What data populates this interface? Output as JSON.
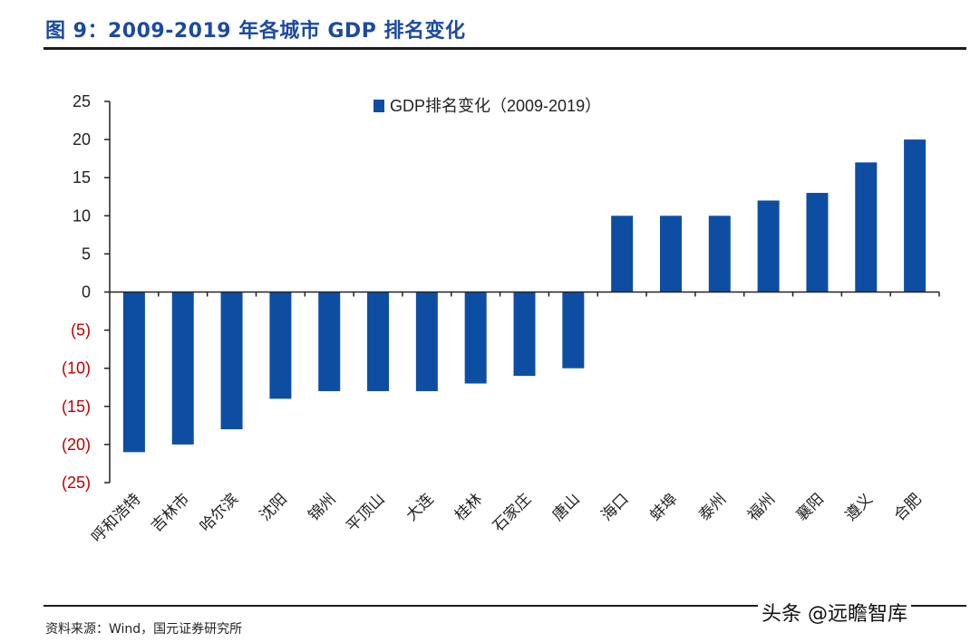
{
  "title": "图 9：2009-2019 年各城市 GDP 排名变化",
  "source": "资料来源：Wind，国元证券研究所",
  "watermark": "头条 @远瞻智库",
  "colors": {
    "bar": "#0e4ea2",
    "title": "#1b4aa0",
    "negative_tick": "#c00000",
    "positive_tick": "#222222"
  },
  "chart_data": {
    "type": "bar",
    "title": "",
    "xlabel": "",
    "ylabel": "",
    "categories": [
      "呼和浩特",
      "吉林市",
      "哈尔滨",
      "沈阳",
      "锦州",
      "平顶山",
      "大连",
      "桂林",
      "石家庄",
      "唐山",
      "海口",
      "蚌埠",
      "泰州",
      "福州",
      "襄阳",
      "遵义",
      "合肥"
    ],
    "series": [
      {
        "name": "GDP排名变化（2009-2019）",
        "values": [
          -21,
          -20,
          -18,
          -14,
          -13,
          -13,
          -13,
          -12,
          -11,
          -10,
          10,
          10,
          10,
          12,
          13,
          17,
          20
        ]
      }
    ],
    "ylim": [
      -25,
      25
    ],
    "yticks": [
      25,
      20,
      15,
      10,
      5,
      0,
      -5,
      -10,
      -15,
      -20,
      -25
    ],
    "ytick_labels": [
      "25",
      "20",
      "15",
      "10",
      "5",
      "0",
      "(5)",
      "(10)",
      "(15)",
      "(20)",
      "(25)"
    ],
    "legend_position": "top",
    "grid": false
  }
}
